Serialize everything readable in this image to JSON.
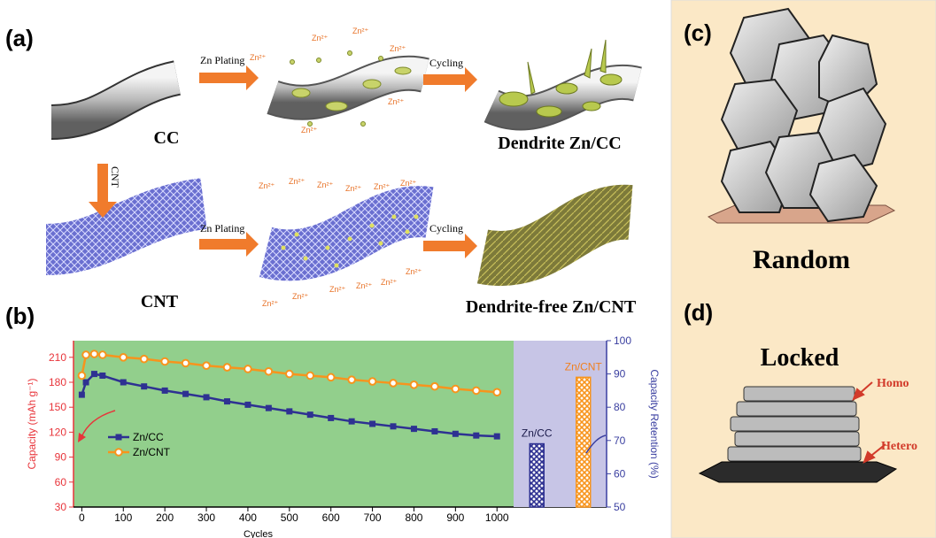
{
  "panel_a": {
    "label": "(a)",
    "plating_1": "Zn Plating",
    "cycling_1": "Cycling",
    "cnt_arrow": "CNT",
    "cc": "CC",
    "dendrite": "Dendrite Zn/CC",
    "cnt": "CNT",
    "plating_2": "Zn Plating",
    "cycling_2": "Cycling",
    "dendrite_free": "Dendrite-free Zn/CNT",
    "ions_top": [
      "Zn²⁺",
      "Zn²⁺",
      "Zn²⁺",
      "Zn²⁺",
      "Zn²⁺",
      "Zn²⁺"
    ],
    "ions_bottom": [
      "Zn²⁺",
      "Zn²⁺",
      "Zn²⁺",
      "Zn²⁺",
      "Zn²⁺",
      "Zn²⁺",
      "Zn²⁺",
      "Zn²⁺",
      "Zn²⁺",
      "Zn²⁺",
      "Zn²⁺",
      "Zn²⁺"
    ]
  },
  "panel_b": {
    "label": "(b)"
  },
  "panel_c": {
    "label": "(c)",
    "caption": "Random"
  },
  "panel_d": {
    "label": "(d)",
    "caption": "Locked",
    "homo": "Homo",
    "hetero": "Hetero"
  },
  "chart_data": [
    {
      "type": "line",
      "xlabel": "Cycles",
      "ylabel": "Capacity (mAh g⁻¹)",
      "x": [
        0,
        10,
        30,
        50,
        100,
        150,
        200,
        250,
        300,
        350,
        400,
        450,
        500,
        550,
        600,
        650,
        700,
        750,
        800,
        850,
        900,
        950,
        1000
      ],
      "series": [
        {
          "name": "Zn/CC",
          "color": "#2e3192",
          "marker": "square",
          "values": [
            165,
            180,
            190,
            188,
            180,
            175,
            170,
            166,
            162,
            157,
            153,
            149,
            145,
            141,
            137,
            133,
            130,
            127,
            124,
            121,
            118,
            116,
            115
          ]
        },
        {
          "name": "Zn/CNT",
          "color": "#f7941d",
          "marker": "circle",
          "values": [
            188,
            213,
            214,
            213,
            210,
            208,
            205,
            203,
            200,
            198,
            196,
            193,
            190,
            188,
            186,
            183,
            181,
            179,
            177,
            175,
            172,
            170,
            168
          ]
        }
      ],
      "xlim": [
        -20,
        1040
      ],
      "xticks": [
        0,
        100,
        200,
        300,
        400,
        500,
        600,
        700,
        800,
        900,
        1000
      ],
      "ylim": [
        30,
        230
      ],
      "yticks": [
        30,
        60,
        90,
        120,
        150,
        180,
        210
      ],
      "legend": "lower left",
      "background": "#92cf8c",
      "axis_color": "#e8343a"
    },
    {
      "type": "bar",
      "ylabel": "Capacity Retention (%)",
      "categories": [
        "Zn/CC",
        "Zn/CNT"
      ],
      "values": [
        69,
        89
      ],
      "colors": [
        "#2e3192",
        "#f7941d"
      ],
      "axis": "y2",
      "y2lim": [
        50,
        100
      ],
      "y2ticks": [
        50,
        60,
        70,
        80,
        90,
        100
      ],
      "background": "#c7c5e6",
      "axis_color": "#3a3fa0"
    }
  ]
}
